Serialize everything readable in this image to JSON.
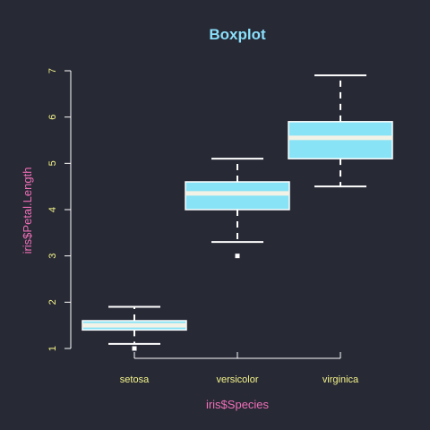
{
  "chart_data": {
    "type": "boxplot",
    "title": "Boxplot",
    "xlabel": "iris$Species",
    "ylabel": "iris$Petal.Length",
    "categories": [
      "setosa",
      "versicolor",
      "virginica"
    ],
    "ylim": [
      1,
      7
    ],
    "yticks": [
      1,
      2,
      3,
      4,
      5,
      6,
      7
    ],
    "boxes": [
      {
        "category": "setosa",
        "whisker_low": 1.1,
        "q1": 1.4,
        "median": 1.5,
        "q3": 1.6,
        "whisker_high": 1.9,
        "outliers": [
          1.0
        ]
      },
      {
        "category": "versicolor",
        "whisker_low": 3.3,
        "q1": 4.0,
        "median": 4.35,
        "q3": 4.6,
        "whisker_high": 5.1,
        "outliers": [
          3.0
        ]
      },
      {
        "category": "virginica",
        "whisker_low": 4.5,
        "q1": 5.1,
        "median": 5.55,
        "q3": 5.9,
        "whisker_high": 6.9,
        "outliers": []
      }
    ],
    "colors": {
      "background": "#272935",
      "box_fill": "#87E3F5",
      "box_border": "#FFFFFF",
      "median": "#F2F2E6",
      "whisker": "#FFFFFF",
      "axis": "#FFFFFF",
      "title": "#8ADFFA",
      "axis_title": "#F06FB7",
      "tick_label": "#F5F58A"
    },
    "grid": false,
    "legend": "none"
  }
}
